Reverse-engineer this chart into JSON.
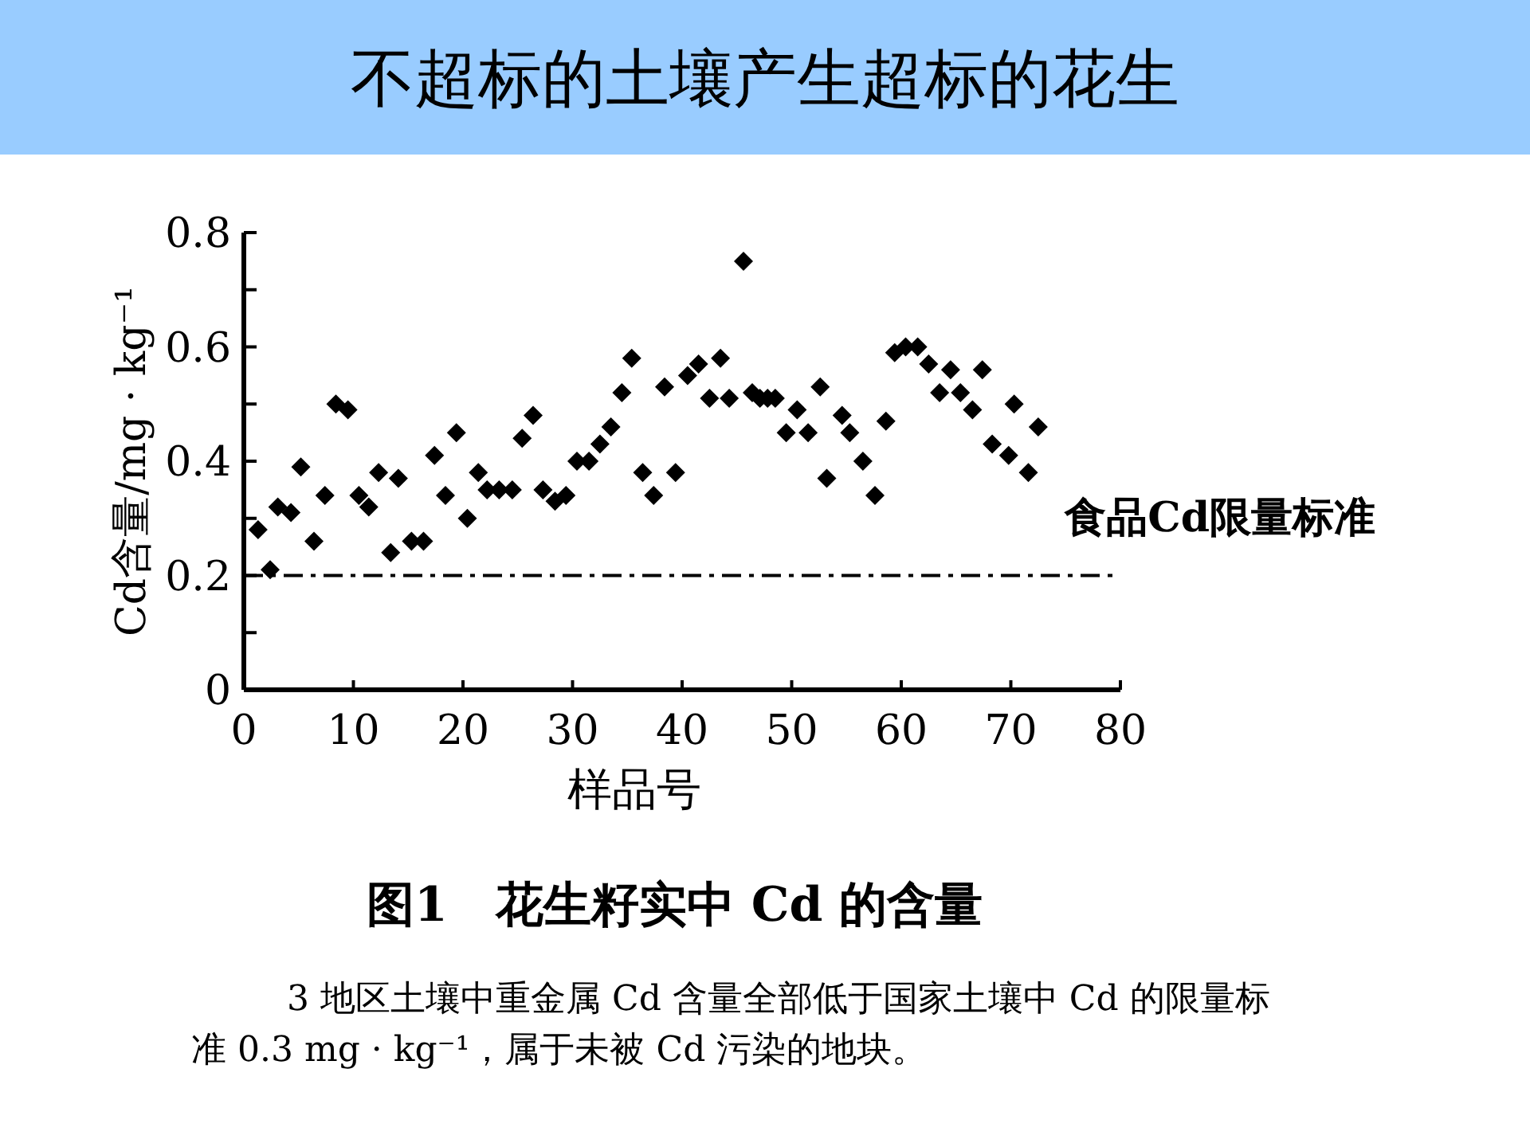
{
  "chart_data": {
    "type": "scatter",
    "title": "不超标的土壤产生超标的花生",
    "xlabel": "样品号",
    "ylabel": "Cd含量/mg · kg⁻¹",
    "annotations": [
      "图1　花生籽实中 Cd 的含量",
      "3 地区土壤中重金属 Cd 含量全部低于国家土壤中 Cd 的限量标准 0.3 mg · kg⁻¹，属于未被 Cd 污染的地块。"
    ],
    "x": [
      1.3,
      2.4,
      3.1,
      4.3,
      5.2,
      6.4,
      7.4,
      8.4,
      9.5,
      10.5,
      11.4,
      12.3,
      13.4,
      14.1,
      15.3,
      16.4,
      17.4,
      18.4,
      19.4,
      20.4,
      21.4,
      22.2,
      23.3,
      24.5,
      25.4,
      26.4,
      27.3,
      28.4,
      29.4,
      30.4,
      31.5,
      32.5,
      33.5,
      34.5,
      35.4,
      36.4,
      37.4,
      38.4,
      39.4,
      40.5,
      41.5,
      42.5,
      43.5,
      44.3,
      45.6,
      46.4,
      47.1,
      47.8,
      48.5,
      49.5,
      50.5,
      51.5,
      52.6,
      53.2,
      54.6,
      55.3,
      56.5,
      57.6,
      58.6,
      59.4,
      60.4,
      61.5,
      62.5,
      63.5,
      64.5,
      65.4,
      66.5,
      67.4,
      68.3,
      69.8,
      70.3,
      71.6,
      72.5
    ],
    "series": [
      {
        "color": "#000000",
        "values": [
          0.28,
          0.21,
          0.32,
          0.31,
          0.39,
          0.26,
          0.34,
          0.5,
          0.49,
          0.34,
          0.32,
          0.38,
          0.24,
          0.37,
          0.26,
          0.26,
          0.41,
          0.34,
          0.45,
          0.3,
          0.38,
          0.35,
          0.35,
          0.35,
          0.44,
          0.48,
          0.35,
          0.33,
          0.34,
          0.4,
          0.4,
          0.43,
          0.46,
          0.52,
          0.58,
          0.38,
          0.34,
          0.53,
          0.38,
          0.55,
          0.57,
          0.51,
          0.58,
          0.51,
          0.75,
          0.52,
          0.51,
          0.51,
          0.51,
          0.45,
          0.49,
          0.45,
          0.53,
          0.37,
          0.48,
          0.45,
          0.4,
          0.34,
          0.47,
          0.59,
          0.6,
          0.6,
          0.57,
          0.52,
          0.56,
          0.52,
          0.49,
          0.56,
          0.43,
          0.41,
          0.5,
          0.38,
          0.46
        ]
      }
    ],
    "marker": "diamond",
    "grid": false,
    "xlim": [
      0,
      80
    ],
    "xticks": [
      0,
      10,
      20,
      30,
      40,
      50,
      60,
      70,
      80
    ],
    "ylim": [
      0,
      0.8
    ],
    "yticks": [
      0,
      {
        "value": 0.1,
        "label": null
      },
      0.2,
      {
        "value": 0.3,
        "label": null
      },
      0.4,
      {
        "value": 0.5,
        "label": null
      },
      0.6,
      {
        "value": 0.7,
        "label": null
      },
      0.8
    ],
    "ref_lines": [
      {
        "axis": "y",
        "value": 0.2,
        "label": "食品Cd限量标准",
        "color": "#000000",
        "line_style": "dashdot"
      }
    ]
  }
}
